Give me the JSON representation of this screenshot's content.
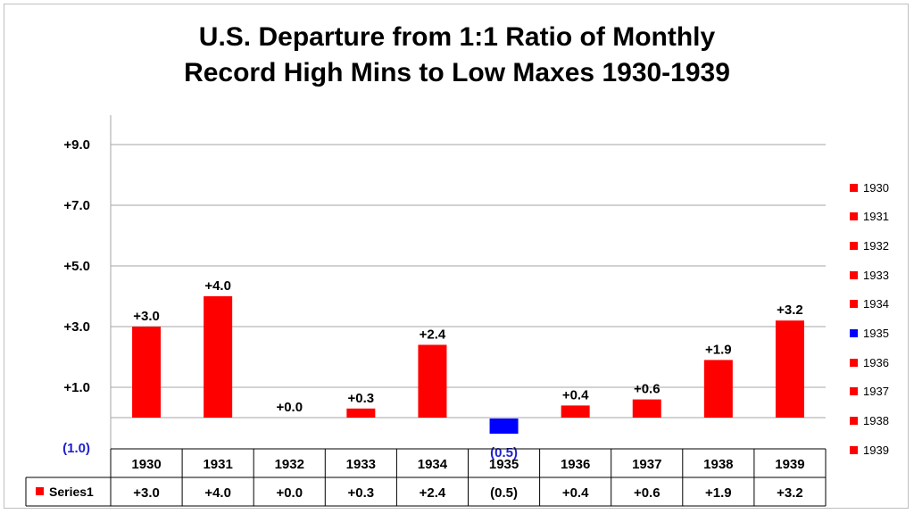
{
  "chart_data": {
    "type": "bar",
    "title_line1": "U.S. Departure from 1:1 Ratio of Monthly",
    "title_line2": "Record High Mins to Low Maxes 1930-1939",
    "categories": [
      "1930",
      "1931",
      "1932",
      "1933",
      "1934",
      "1935",
      "1936",
      "1937",
      "1938",
      "1939"
    ],
    "series": [
      {
        "name": "Series1",
        "values": [
          3.0,
          4.0,
          0.0,
          0.3,
          2.4,
          -0.5,
          0.4,
          0.6,
          1.9,
          3.2
        ],
        "labels": [
          "+3.0",
          "+4.0",
          "+0.0",
          "+0.3",
          "+2.4",
          "(0.5)",
          "+0.4",
          "+0.6",
          "+1.9",
          "+3.2"
        ]
      }
    ],
    "y_ticks": [
      {
        "value": 9,
        "label": "+9.0"
      },
      {
        "value": 7,
        "label": "+7.0"
      },
      {
        "value": 5,
        "label": "+5.0"
      },
      {
        "value": 3,
        "label": "+3.0"
      },
      {
        "value": 1,
        "label": "+1.0"
      },
      {
        "value": -1,
        "label": "(1.0)"
      }
    ],
    "ylim": [
      -1,
      10
    ],
    "positive_color": "#ff0000",
    "negative_color": "#0000ff",
    "grid": true,
    "legend_position": "right",
    "data_table": true
  }
}
